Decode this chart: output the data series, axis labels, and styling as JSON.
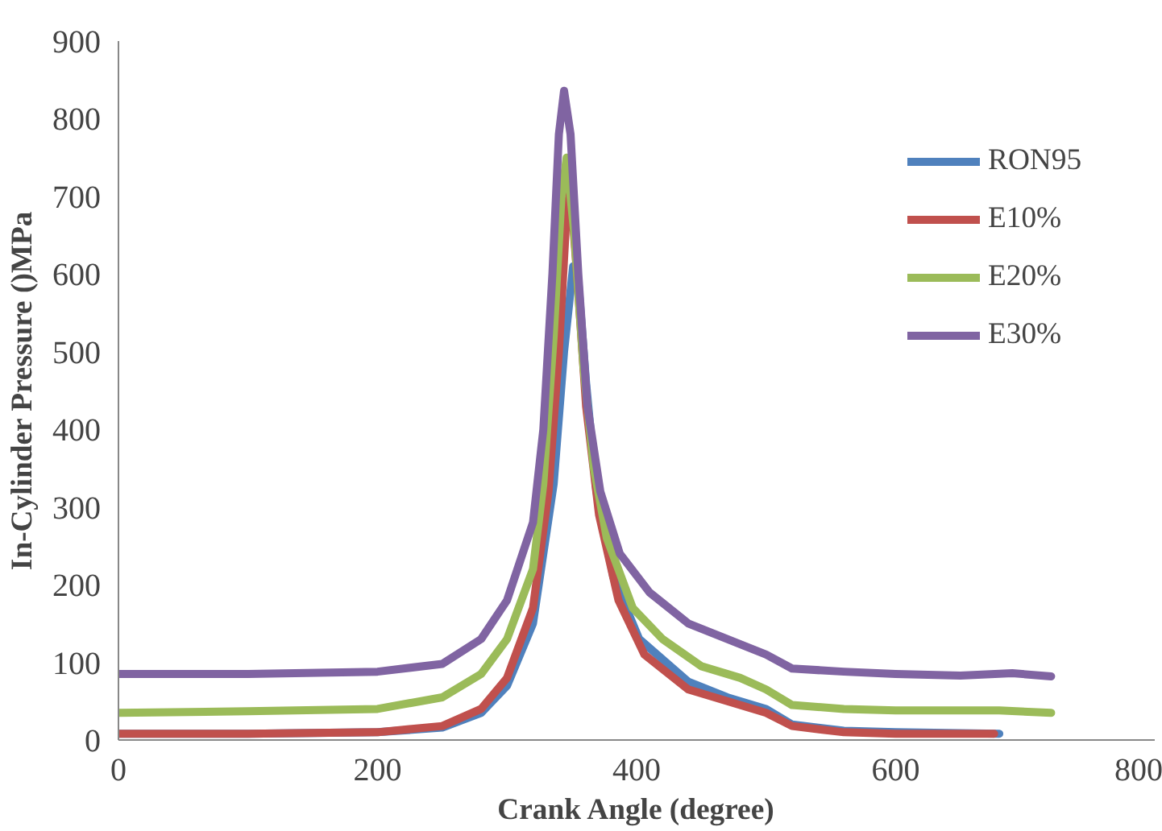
{
  "chart_data": {
    "type": "line",
    "xlabel": "Crank Angle (degree)",
    "ylabel": "In-Cylinder Pressure ()MPa",
    "xlim": [
      0,
      800
    ],
    "xticks": [
      0,
      200,
      400,
      600,
      800
    ],
    "ylim": [
      0,
      900
    ],
    "yticks": [
      0,
      100,
      200,
      300,
      400,
      500,
      600,
      700,
      800,
      900
    ],
    "grid": false,
    "legend": "right",
    "marker": "none",
    "line_style": "solid",
    "series": [
      {
        "name": "RON95",
        "color": "#4f81bd",
        "x": [
          0,
          100,
          200,
          250,
          280,
          300,
          320,
          336,
          344,
          351,
          355,
          361,
          369,
          382,
          402,
          440,
          470,
          500,
          520,
          560,
          600,
          680
        ],
        "values": [
          8,
          8,
          10,
          16,
          35,
          70,
          150,
          330,
          500,
          610,
          590,
          460,
          320,
          210,
          130,
          75,
          55,
          40,
          20,
          12,
          10,
          8
        ]
      },
      {
        "name": "E10%",
        "color": "#c0504d",
        "x": [
          0,
          100,
          200,
          250,
          280,
          300,
          320,
          332,
          340,
          346,
          349,
          354,
          361,
          371,
          386,
          406,
          440,
          470,
          500,
          520,
          560,
          600,
          676
        ],
        "values": [
          8,
          8,
          10,
          18,
          40,
          80,
          170,
          320,
          500,
          680,
          710,
          600,
          430,
          290,
          180,
          110,
          65,
          50,
          35,
          18,
          10,
          8,
          8
        ]
      },
      {
        "name": "E20%",
        "color": "#9bbb59",
        "x": [
          0,
          100,
          200,
          250,
          280,
          300,
          320,
          328,
          336,
          342,
          346,
          352,
          359,
          367,
          377,
          397,
          420,
          450,
          480,
          500,
          520,
          560,
          600,
          680,
          720
        ],
        "values": [
          35,
          37,
          40,
          55,
          85,
          130,
          220,
          330,
          520,
          700,
          750,
          650,
          480,
          350,
          260,
          170,
          130,
          95,
          80,
          65,
          45,
          40,
          38,
          38,
          35
        ]
      },
      {
        "name": "E30%",
        "color": "#8064a2",
        "x": [
          0,
          100,
          200,
          250,
          280,
          300,
          320,
          328,
          335,
          340,
          344,
          349,
          355,
          362,
          372,
          387,
          410,
          440,
          470,
          500,
          520,
          560,
          600,
          650,
          690,
          720
        ],
        "values": [
          85,
          85,
          88,
          98,
          130,
          180,
          280,
          400,
          600,
          780,
          836,
          780,
          600,
          430,
          320,
          240,
          190,
          150,
          130,
          110,
          92,
          88,
          85,
          83,
          86,
          82
        ]
      }
    ]
  }
}
